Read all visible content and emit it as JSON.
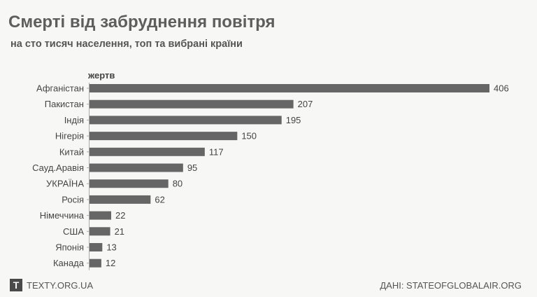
{
  "chart_data": {
    "type": "bar",
    "orientation": "horizontal",
    "title": "Смерті від забруднення повітря",
    "subtitle": "на сто тисяч населення, топ та вибрані країни",
    "unit_label": "жертв",
    "categories": [
      "Афганістан",
      "Пакистан",
      "Індія",
      "Нігерія",
      "Китай",
      "Сауд.Аравія",
      "УКРАЇНА",
      "Росія",
      "Німеччина",
      "США",
      "Японія",
      "Канада"
    ],
    "values": [
      406,
      207,
      195,
      150,
      117,
      95,
      80,
      62,
      22,
      21,
      13,
      12
    ],
    "bar_color": "#666666",
    "grid": false
  },
  "footer": {
    "logo_letter": "T",
    "site": "TEXTY.ORG.UA",
    "source": "ДАНІ: STATEOFGLOBALAIR.ORG"
  }
}
